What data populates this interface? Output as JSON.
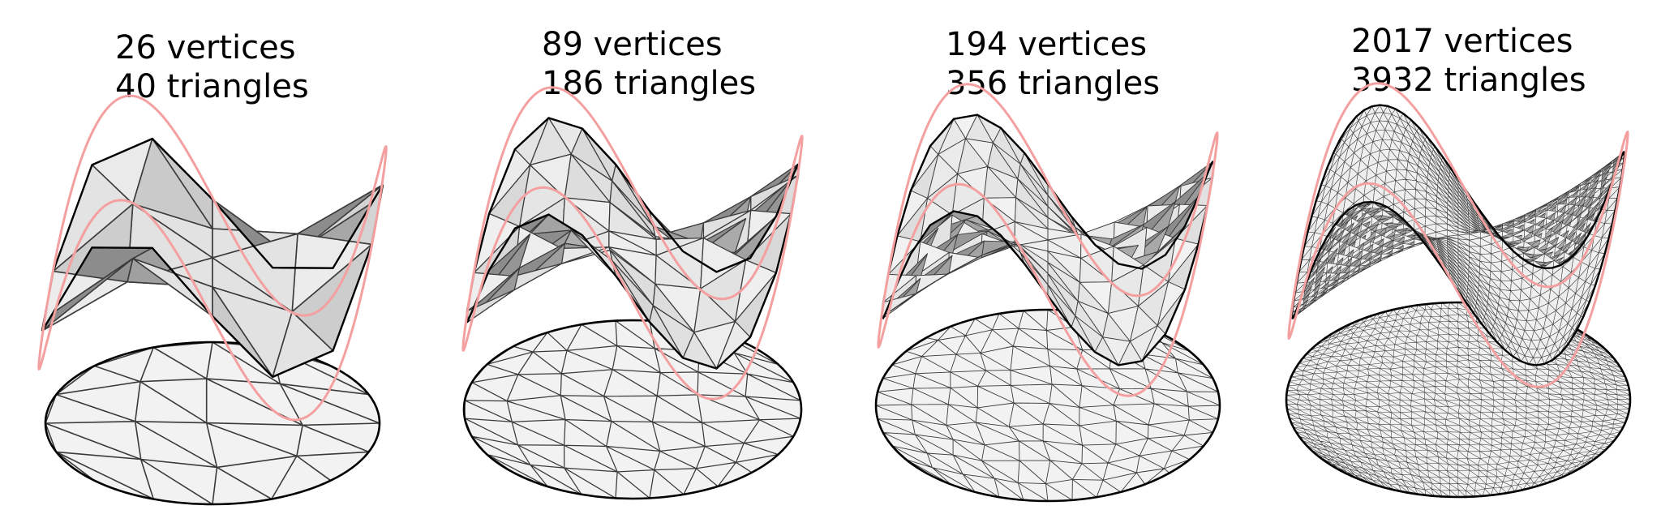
{
  "panels": [
    {
      "vertices_label": "26 vertices",
      "triangles_label": "40 triangles",
      "mesh_resolution": 4
    },
    {
      "vertices_label": "89 vertices",
      "triangles_label": "186 triangles",
      "mesh_resolution": 7
    },
    {
      "vertices_label": "194 vertices",
      "triangles_label": "356 triangles",
      "mesh_resolution": 10
    },
    {
      "vertices_label": "2017 vertices",
      "triangles_label": "3932 triangles",
      "mesh_resolution": 30
    }
  ],
  "colors": {
    "mesh_fill_light": "#f2f2f2",
    "mesh_fill_dark": "#9a9a9a",
    "mesh_edge": "#3a3a3a",
    "boundary_edge": "#000000",
    "reference_curve": "#f4a0a0"
  }
}
